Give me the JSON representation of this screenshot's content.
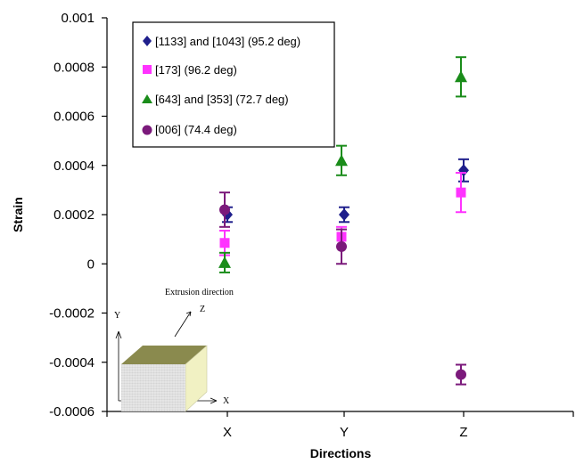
{
  "chart_data": {
    "type": "scatter",
    "xlabel": "Directions",
    "ylabel": "Strain",
    "categories": [
      "X",
      "Y",
      "Z"
    ],
    "ylim": [
      -0.0006,
      0.001
    ],
    "yticks": [
      "0.001",
      "0.0008",
      "0.0006",
      "0.0004",
      "0.0002",
      "0",
      "-0.0002",
      "-0.0004",
      "-0.0006"
    ],
    "error_bars": true,
    "legend_position": "top-left",
    "series": [
      {
        "name": "[1133] and [1043] (95.2 deg)",
        "marker": "diamond",
        "color": "#1f1f8c",
        "values": [
          0.0002,
          0.0002,
          0.00038
        ],
        "errors": [
          3e-05,
          3e-05,
          4.5e-05
        ]
      },
      {
        "name": "[173] (96.2 deg)",
        "marker": "square",
        "color": "#ff33ff",
        "values": [
          8.5e-05,
          0.00011,
          0.00029
        ],
        "errors": [
          5e-05,
          4e-05,
          8e-05
        ]
      },
      {
        "name": "[643] and [353] (72.7 deg)",
        "marker": "triangle",
        "color": "#1a8c1a",
        "values": [
          5e-06,
          0.00042,
          0.00076
        ],
        "errors": [
          4e-05,
          6e-05,
          8e-05
        ]
      },
      {
        "name": "[006] (74.4 deg)",
        "marker": "circle",
        "color": "#7b1a7b",
        "values": [
          0.00022,
          7e-05,
          -0.00045
        ],
        "errors": [
          7e-05,
          7e-05,
          4e-05
        ]
      }
    ]
  },
  "inset": {
    "extrusion_label": "Extrusion direction",
    "axis_z": "Z",
    "axis_y": "Y",
    "axis_x": "X"
  }
}
